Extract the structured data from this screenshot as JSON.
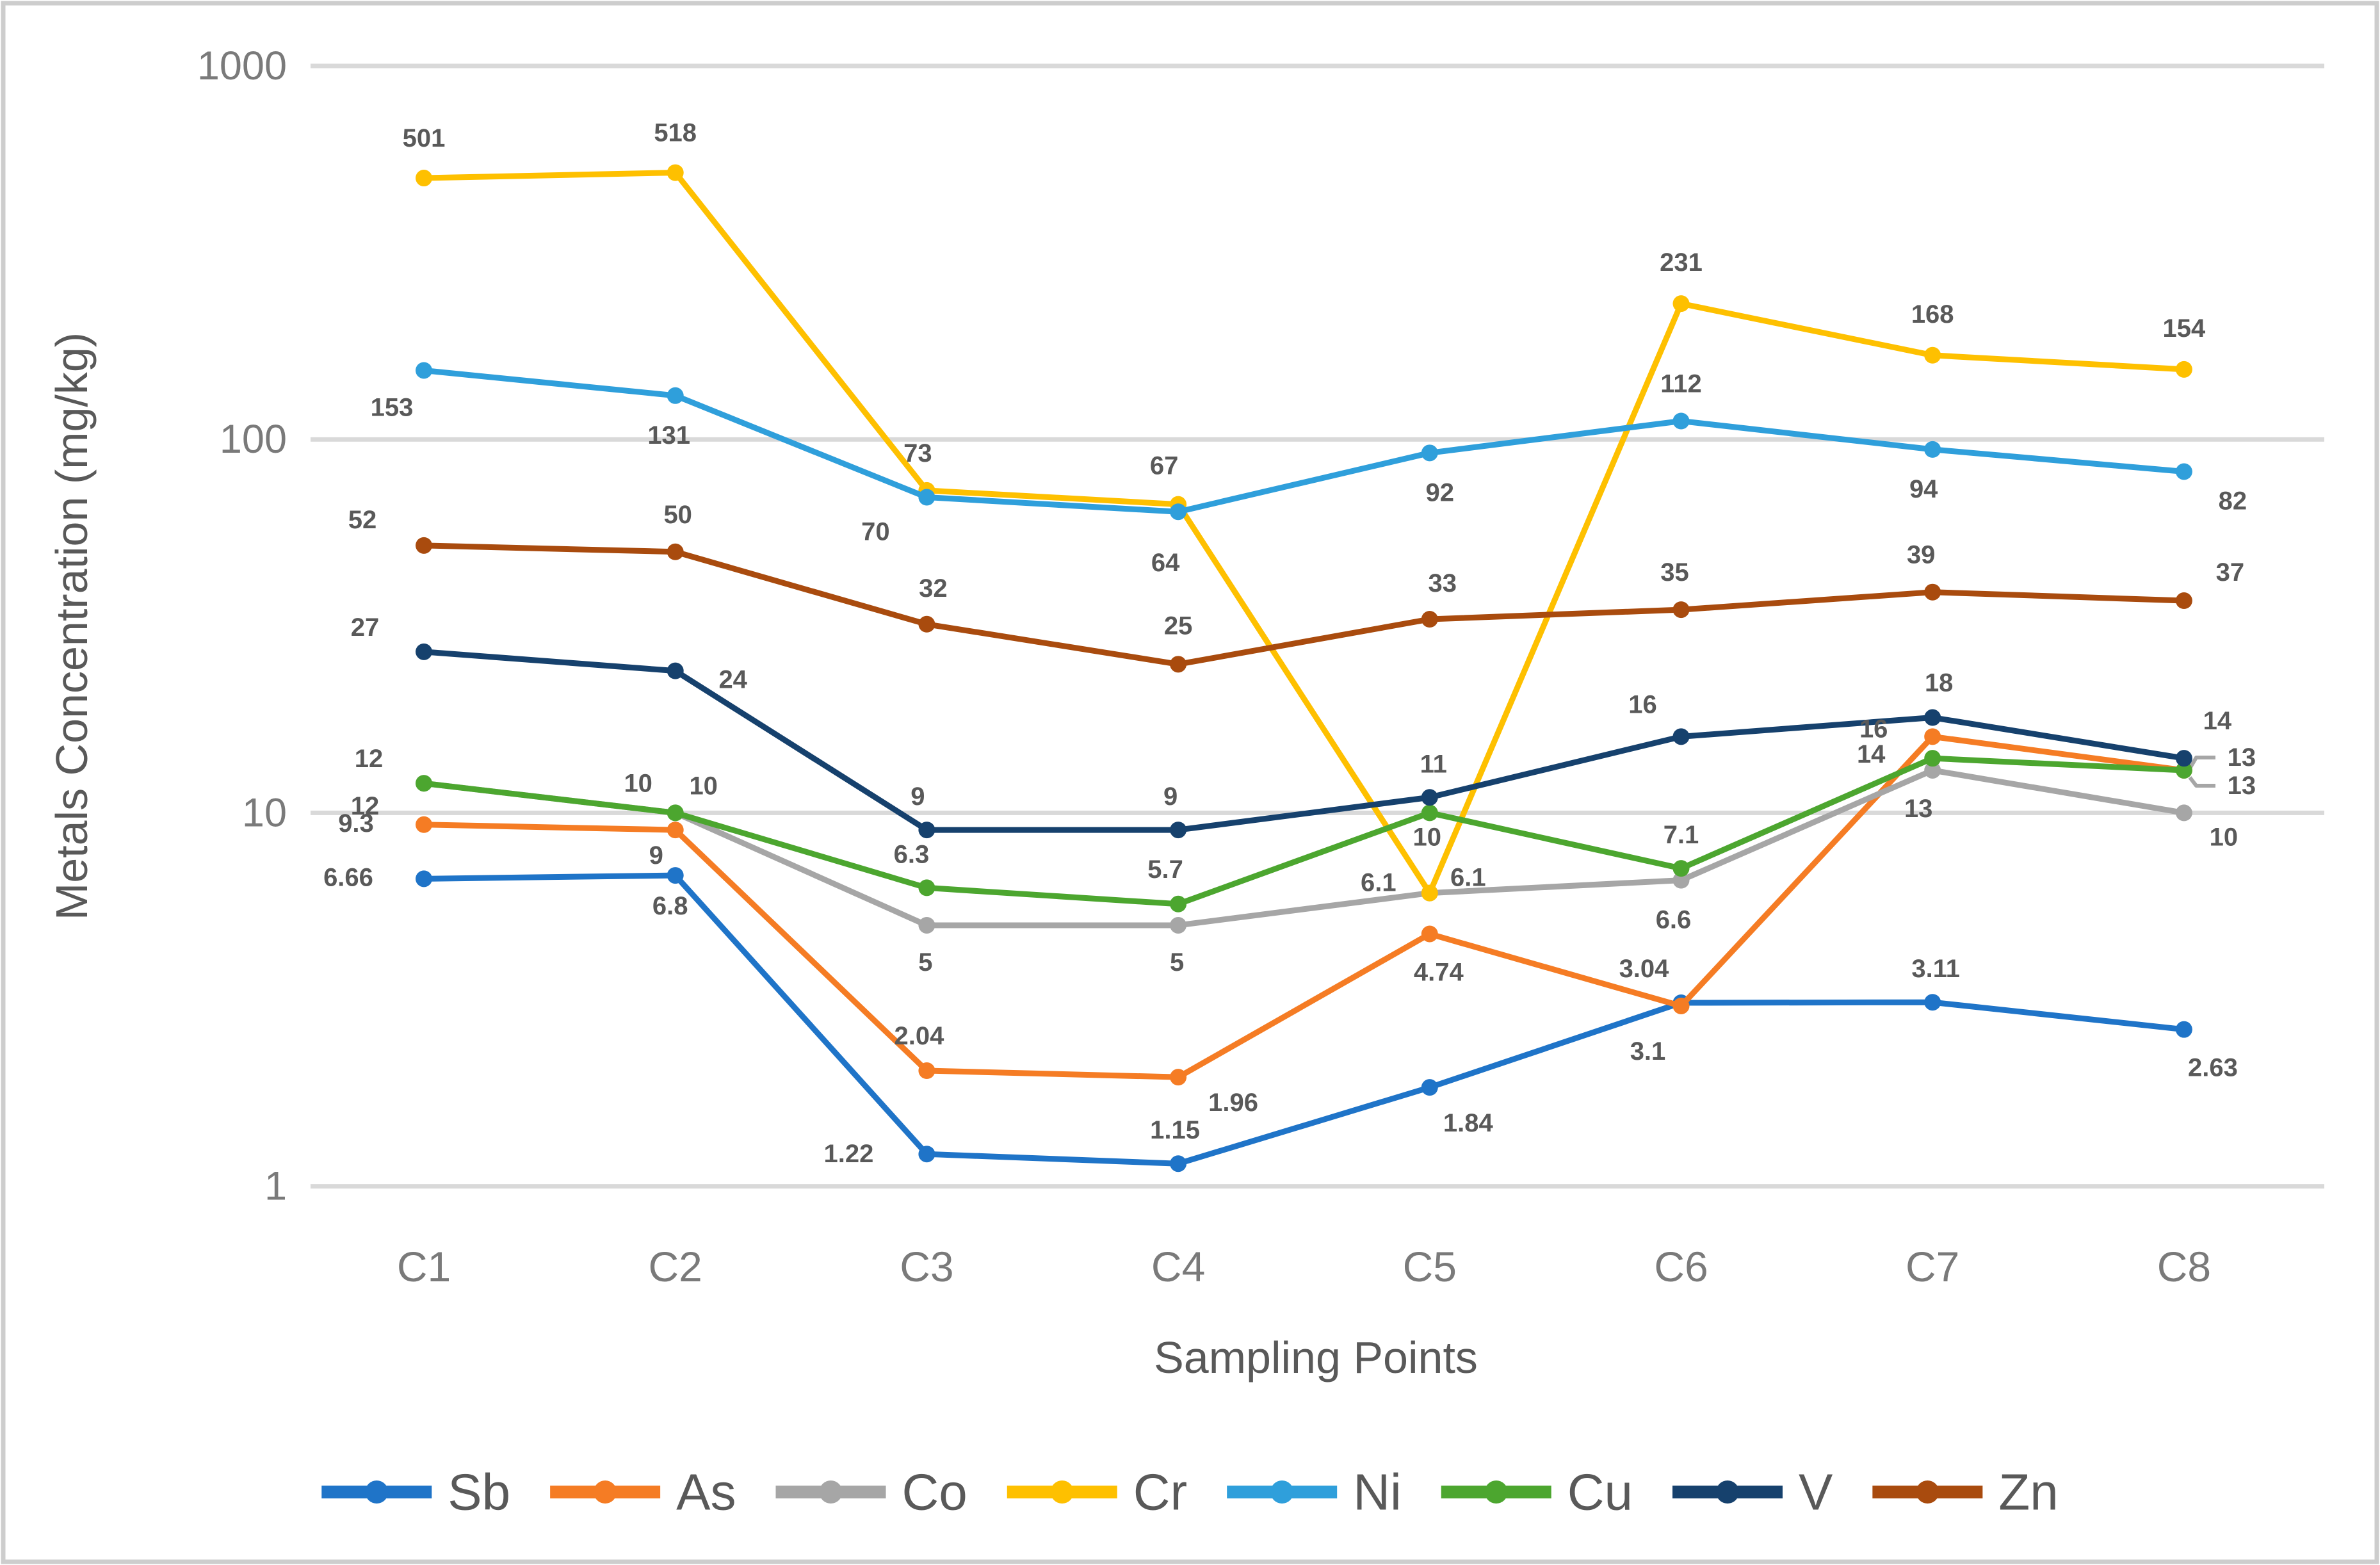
{
  "chart_data": {
    "type": "line",
    "title": "",
    "xlabel": "Sampling Points",
    "ylabel": "Metals Concentration (mg/kg)",
    "y_scale": "log",
    "ylim": [
      1,
      1000
    ],
    "y_ticks": [
      "1000",
      "100",
      "10",
      "1"
    ],
    "grid": "horizontal-only",
    "legend_position": "bottom",
    "categories": [
      "C1",
      "C2",
      "C3",
      "C4",
      "C5",
      "C6",
      "C7",
      "C8"
    ],
    "series": [
      {
        "name": "Sb",
        "color": "#1F74C8",
        "values": [
          6.66,
          6.8,
          1.22,
          1.15,
          1.84,
          3.1,
          3.11,
          2.63
        ],
        "labels": [
          "6.66",
          "6.8",
          "1.22",
          "1.15",
          "1.84",
          "3.1",
          "3.11",
          "2.63"
        ]
      },
      {
        "name": "As",
        "color": "#F57C24",
        "values": [
          9.3,
          9,
          2.04,
          1.96,
          4.74,
          3.04,
          16,
          13
        ],
        "labels": [
          "9.3",
          "9",
          "2.04",
          "1.96",
          "4.74",
          "3.04",
          "16",
          "13"
        ]
      },
      {
        "name": "Co",
        "color": "#A6A6A6",
        "values": [
          12,
          10,
          5,
          5,
          6.1,
          6.6,
          13,
          10
        ],
        "labels": [
          "12",
          "10",
          "5",
          "5",
          "6.1",
          "6.6",
          "13",
          "10"
        ]
      },
      {
        "name": "Cr",
        "color": "#FEC000",
        "values": [
          501,
          518,
          73,
          67,
          6.1,
          231,
          168,
          154
        ],
        "labels": [
          "501",
          "518",
          "73",
          "67",
          "6.1",
          "231",
          "168",
          "154"
        ]
      },
      {
        "name": "Ni",
        "color": "#2F9FDB",
        "values": [
          153,
          131,
          70,
          64,
          92,
          112,
          94,
          82
        ],
        "labels": [
          "153",
          "131",
          "70",
          "64",
          "92",
          "112",
          "94",
          "82"
        ]
      },
      {
        "name": "Cu",
        "color": "#4CA62F",
        "values": [
          12,
          10,
          6.3,
          5.7,
          10,
          7.1,
          14,
          13
        ],
        "labels": [
          "12",
          "10",
          "6.3",
          "5.7",
          "10",
          "7.1",
          "14",
          "13"
        ]
      },
      {
        "name": "V",
        "color": "#16416D",
        "values": [
          27,
          24,
          9,
          9,
          11,
          16,
          18,
          14
        ],
        "labels": [
          "27",
          "24",
          "9",
          "9",
          "11",
          "16",
          "18",
          "14"
        ]
      },
      {
        "name": "Zn",
        "color": "#A94B0E",
        "values": [
          52,
          50,
          32,
          25,
          33,
          35,
          39,
          37
        ],
        "labels": [
          "52",
          "50",
          "32",
          "25",
          "33",
          "35",
          "39",
          "37"
        ]
      }
    ]
  }
}
